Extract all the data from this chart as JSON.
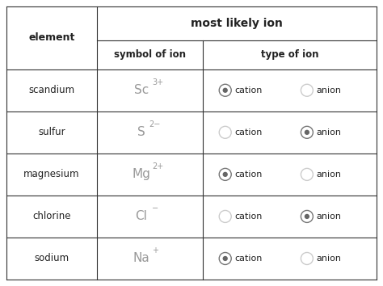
{
  "title": "most likely ion",
  "col_header1": "element",
  "col_header2": "symbol of ion",
  "col_header3": "type of ion",
  "rows": [
    {
      "element": "scandium",
      "symbol": "Sc",
      "charge": "3+",
      "cation_selected": true,
      "anion_selected": false
    },
    {
      "element": "sulfur",
      "symbol": "S",
      "charge": "2−",
      "cation_selected": false,
      "anion_selected": true
    },
    {
      "element": "magnesium",
      "symbol": "Mg",
      "charge": "2+",
      "cation_selected": true,
      "anion_selected": false
    },
    {
      "element": "chlorine",
      "symbol": "Cl",
      "charge": "−",
      "cation_selected": false,
      "anion_selected": true
    },
    {
      "element": "sodium",
      "symbol": "Na",
      "charge": "+",
      "cation_selected": true,
      "anion_selected": false
    }
  ],
  "bg_color": "#ffffff",
  "border_color": "#333333",
  "text_color": "#222222",
  "symbol_color": "#999999",
  "radio_selected_edge": "#777777",
  "radio_selected_dot": "#666666",
  "radio_unselected_edge": "#cccccc",
  "fig_width": 4.74,
  "fig_height": 3.54,
  "dpi": 100
}
